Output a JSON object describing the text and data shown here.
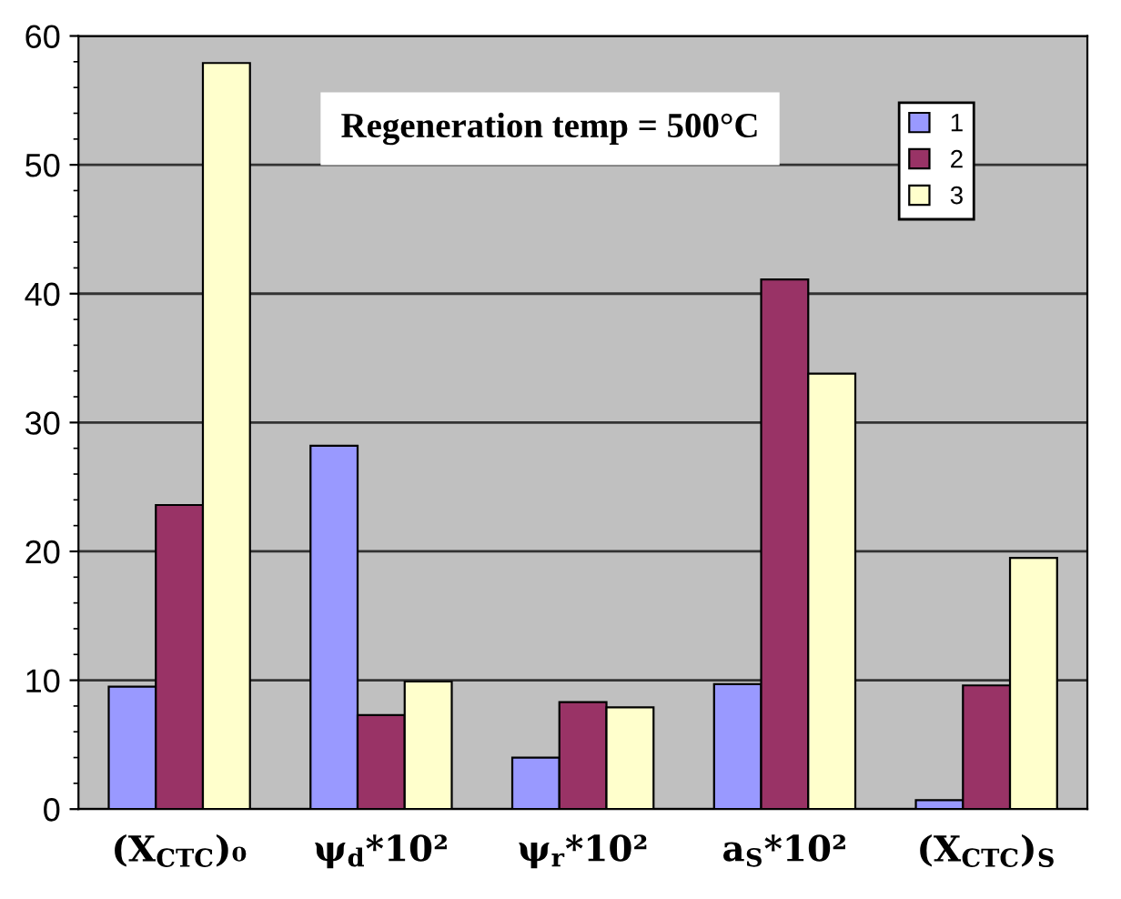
{
  "chart_data": {
    "type": "bar",
    "categories": [
      "(X$_{CTC}$)₀",
      "ψ$_{d}$*10²",
      "ψ$_{r}$*10²",
      "a$_{S}$*10²",
      "(X$_{CTC}$)$_{S}$"
    ],
    "series": [
      {
        "name": "1",
        "color": "#9999ff",
        "values": [
          9.5,
          28.2,
          4.0,
          9.7,
          0.7
        ]
      },
      {
        "name": "2",
        "color": "#993366",
        "values": [
          23.6,
          7.3,
          8.3,
          41.1,
          9.6
        ]
      },
      {
        "name": "3",
        "color": "#ffffcc",
        "values": [
          57.9,
          9.9,
          7.9,
          33.8,
          19.5
        ]
      }
    ],
    "ylim": [
      0,
      60
    ],
    "yticks": [
      0,
      10,
      20,
      30,
      40,
      50,
      60
    ],
    "grid": "y",
    "legend": "top right",
    "annotations": [
      "Regeneration temp = 500°C"
    ]
  }
}
